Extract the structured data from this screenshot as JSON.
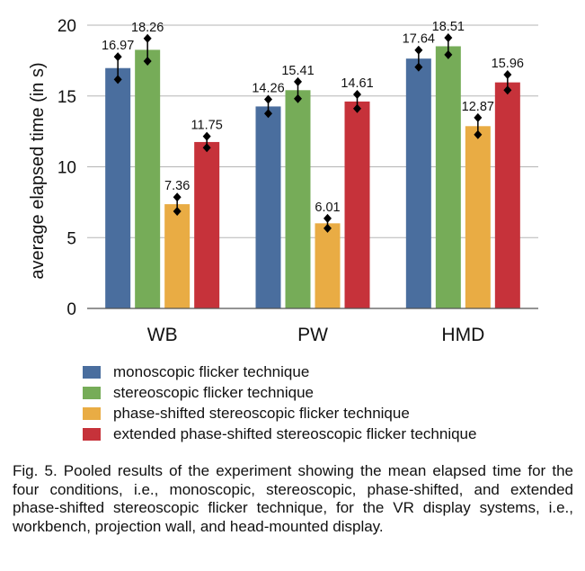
{
  "chart_data": {
    "type": "bar",
    "categories": [
      "WB",
      "PW",
      "HMD"
    ],
    "ylabel": "average elapsed time (in s)",
    "ylim": [
      0,
      20
    ],
    "yticks": [
      "0",
      "5",
      "10",
      "15",
      "20"
    ],
    "grid": true,
    "legend_position": "bottom",
    "series": [
      {
        "name": "monoscopic flicker technique",
        "color": "#4a6e9e",
        "values": [
          16.97,
          14.26,
          17.64
        ],
        "labels": [
          "16.97",
          "14.26",
          "17.64"
        ],
        "error": [
          0.8,
          0.5,
          0.6
        ]
      },
      {
        "name": "stereoscopic flicker technique",
        "color": "#76ac58",
        "values": [
          18.26,
          15.41,
          18.51
        ],
        "labels": [
          "18.26",
          "15.41",
          "18.51"
        ],
        "error": [
          0.8,
          0.6,
          0.6
        ]
      },
      {
        "name": "phase-shifted stereoscopic flicker technique",
        "color": "#e9ac44",
        "values": [
          7.36,
          6.01,
          12.87
        ],
        "labels": [
          "7.36",
          "6.01",
          "12.87"
        ],
        "error": [
          0.5,
          0.35,
          0.6
        ]
      },
      {
        "name": "extended phase-shifted stereoscopic flicker technique",
        "color": "#c6323a",
        "values": [
          11.75,
          14.61,
          15.96
        ],
        "labels": [
          "11.75",
          "14.61",
          "15.96"
        ],
        "error": [
          0.4,
          0.5,
          0.55
        ]
      }
    ]
  },
  "caption": "Fig. 5. Pooled results of the experiment showing the mean elapsed time for the four conditions, i.e., monoscopic, stereoscopic, phase-shifted, and extended phase-shifted stereoscopic flicker technique, for the VR display systems, i.e., workbench, projection wall, and head-mounted display."
}
